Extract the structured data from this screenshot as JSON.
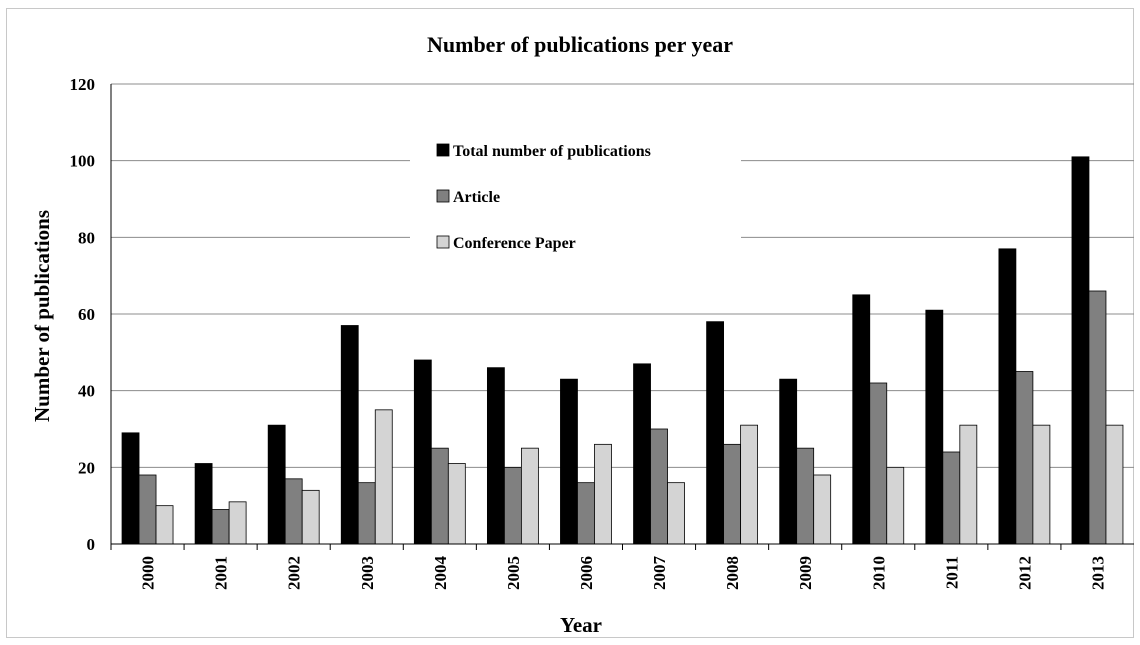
{
  "chart_data": {
    "type": "bar",
    "title": "Number of publications per year",
    "xlabel": "Year",
    "ylabel": "Number  of publications",
    "ylim": [
      0,
      120
    ],
    "yticks": [
      0,
      20,
      40,
      60,
      80,
      100,
      120
    ],
    "grid": true,
    "legend_position": "top-center",
    "categories": [
      "2000",
      "2001",
      "2002",
      "2003",
      "2004",
      "2005",
      "2006",
      "2007",
      "2008",
      "2009",
      "2010",
      "2011",
      "2012",
      "2013"
    ],
    "series": [
      {
        "name": "Total number of publications",
        "color": "#000000",
        "values": [
          29,
          21,
          31,
          57,
          48,
          46,
          43,
          47,
          58,
          43,
          65,
          61,
          77,
          101
        ]
      },
      {
        "name": "Article",
        "color": "#808080",
        "values": [
          18,
          9,
          17,
          16,
          25,
          20,
          16,
          30,
          26,
          25,
          42,
          24,
          45,
          66
        ]
      },
      {
        "name": "Conference Paper",
        "color": "#d4d4d4",
        "values": [
          10,
          11,
          14,
          35,
          21,
          25,
          26,
          16,
          31,
          18,
          20,
          31,
          31,
          31
        ]
      }
    ]
  }
}
